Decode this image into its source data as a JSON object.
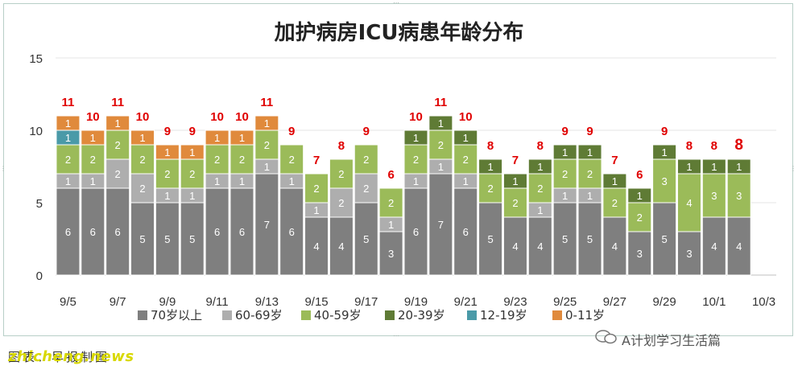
{
  "chart_data": {
    "type": "bar",
    "stacked": true,
    "title": "加护病房ICU病患年龄分布",
    "ylim": [
      0,
      15
    ],
    "yticks": [
      0,
      5,
      10,
      15
    ],
    "grid": true,
    "legend_position": "bottom",
    "categories": [
      "9/5",
      "9/6",
      "9/7",
      "9/8",
      "9/9",
      "9/10",
      "9/11",
      "9/12",
      "9/13",
      "9/14",
      "9/15",
      "9/16",
      "9/17",
      "9/18",
      "9/19",
      "9/20",
      "9/21",
      "9/22",
      "9/23",
      "9/24",
      "9/25",
      "9/26",
      "9/27",
      "9/28",
      "9/29",
      "9/30",
      "10/1",
      "10/2",
      "10/3"
    ],
    "x_tick_labels": [
      "9/5",
      "9/7",
      "9/9",
      "9/11",
      "9/13",
      "9/15",
      "9/17",
      "9/19",
      "9/21",
      "9/23",
      "9/25",
      "9/27",
      "9/29",
      "10/1",
      "10/3"
    ],
    "totals": [
      11,
      10,
      11,
      10,
      9,
      9,
      10,
      10,
      11,
      9,
      7,
      8,
      9,
      6,
      10,
      11,
      10,
      8,
      7,
      8,
      9,
      9,
      7,
      6,
      9,
      8,
      8,
      8,
      null
    ],
    "series": [
      {
        "name": "70岁以上",
        "color": "#7f7f7f",
        "values": [
          6,
          6,
          6,
          5,
          5,
          5,
          6,
          6,
          7,
          6,
          4,
          4,
          5,
          3,
          6,
          7,
          6,
          5,
          4,
          4,
          5,
          5,
          4,
          3,
          5,
          3,
          4,
          4,
          null
        ]
      },
      {
        "name": "60-69岁",
        "color": "#aeaeae",
        "values": [
          1,
          1,
          2,
          2,
          1,
          1,
          1,
          1,
          1,
          1,
          1,
          2,
          2,
          1,
          1,
          1,
          1,
          0,
          0,
          1,
          1,
          1,
          0,
          0,
          0,
          0,
          0,
          0,
          null
        ]
      },
      {
        "name": "40-59岁",
        "color": "#9bbb59",
        "values": [
          2,
          2,
          2,
          2,
          2,
          2,
          2,
          2,
          2,
          2,
          2,
          2,
          2,
          2,
          2,
          2,
          2,
          2,
          2,
          2,
          2,
          2,
          2,
          2,
          3,
          4,
          3,
          3,
          null
        ]
      },
      {
        "name": "20-39岁",
        "color": "#5f7b35",
        "values": [
          0,
          0,
          0,
          0,
          0,
          0,
          0,
          0,
          0,
          0,
          0,
          0,
          0,
          0,
          1,
          1,
          1,
          1,
          1,
          1,
          1,
          1,
          1,
          1,
          1,
          1,
          1,
          1,
          null
        ]
      },
      {
        "name": "12-19岁",
        "color": "#4a9aa8",
        "values": [
          1,
          0,
          0,
          0,
          0,
          0,
          0,
          0,
          0,
          0,
          0,
          0,
          0,
          0,
          0,
          0,
          0,
          0,
          0,
          0,
          0,
          0,
          0,
          0,
          0,
          0,
          0,
          0,
          null
        ]
      },
      {
        "name": "0-11岁",
        "color": "#e08a3c",
        "values": [
          1,
          1,
          1,
          1,
          1,
          1,
          1,
          1,
          1,
          0,
          0,
          0,
          0,
          0,
          0,
          0,
          0,
          0,
          0,
          0,
          0,
          0,
          0,
          0,
          0,
          0,
          0,
          0,
          null
        ]
      }
    ],
    "visible_segment_labels": [
      [
        "6",
        "1",
        "2",
        "1",
        "1"
      ],
      [
        "6",
        "1",
        "2",
        "1"
      ],
      [
        "6",
        "2",
        "2",
        "1"
      ],
      [
        "5",
        "2",
        "2",
        "1"
      ],
      [
        "5",
        "1",
        "2",
        "1"
      ],
      [
        "5",
        "1",
        "2",
        "1"
      ],
      [
        "6",
        "1",
        "2",
        "1"
      ],
      [
        "6",
        "1",
        "2",
        "1"
      ],
      [
        "7",
        "1",
        "2",
        "1"
      ],
      [
        "6",
        "1",
        "2"
      ],
      [
        "4",
        "1",
        "2"
      ],
      [
        "4",
        "2",
        "2"
      ],
      [
        "5",
        "2",
        "2"
      ],
      [
        "3",
        "1",
        "2"
      ],
      [
        "6",
        "1",
        "2",
        "1"
      ],
      [
        "7",
        "1",
        "2",
        "1"
      ],
      [
        "6",
        "1",
        "2",
        "1"
      ],
      [
        "5",
        "2",
        "1"
      ],
      [
        "4",
        "2",
        "1"
      ],
      [
        "4",
        "1",
        "2",
        "1"
      ],
      [
        "5",
        "1",
        "2",
        "1"
      ],
      [
        "5",
        "1",
        "2",
        "1"
      ],
      [
        "4",
        "2",
        "1"
      ],
      [
        "3",
        "2",
        "1"
      ],
      [
        "5",
        "3",
        "1"
      ],
      [
        "3",
        "0",
        "4",
        "1"
      ],
      [
        "4",
        "3",
        "1"
      ],
      [
        "4",
        "3",
        "1"
      ],
      []
    ]
  },
  "footer": {
    "credit": "图表：早报制图",
    "brand": "zhicheng.news"
  },
  "watermark": "A计划学习生活篇"
}
